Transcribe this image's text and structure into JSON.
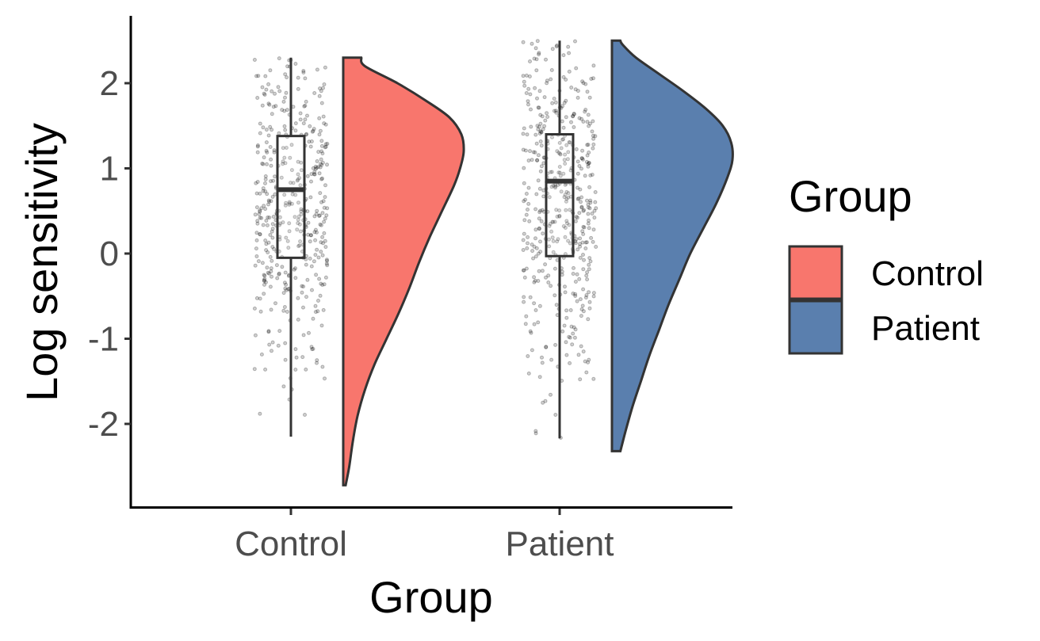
{
  "chart_data": {
    "type": "raincloud",
    "xlabel": "Group",
    "ylabel": "Log sensitivity",
    "categories": [
      "Control",
      "Patient"
    ],
    "ylim": [
      -2.95,
      2.78
    ],
    "yticks": [
      -2,
      -1,
      0,
      1,
      2
    ],
    "legend": {
      "title": "Group",
      "position": "right",
      "entries": [
        {
          "label": "Control",
          "color": "#F8766D"
        },
        {
          "label": "Patient",
          "color": "#5A7FAE"
        }
      ]
    },
    "groups": [
      {
        "name": "Control",
        "color": "#F8766D",
        "box": {
          "whisker_low": -2.15,
          "q1": -0.05,
          "median": 0.75,
          "q3": 1.38,
          "whisker_high": 2.3
        },
        "density": {
          "y": [
            -2.72,
            -2.5,
            -2.2,
            -1.9,
            -1.6,
            -1.3,
            -1.0,
            -0.7,
            -0.4,
            -0.1,
            0.2,
            0.5,
            0.8,
            1.0,
            1.2,
            1.4,
            1.6,
            1.8,
            2.0,
            2.2,
            2.3
          ],
          "width": [
            0.02,
            0.05,
            0.08,
            0.12,
            0.18,
            0.26,
            0.36,
            0.46,
            0.55,
            0.63,
            0.72,
            0.82,
            0.92,
            0.97,
            1.0,
            0.98,
            0.88,
            0.68,
            0.45,
            0.18,
            0.15
          ]
        },
        "points_n": 430,
        "points_mean": 0.55,
        "points_sd": 0.95
      },
      {
        "name": "Patient",
        "color": "#5A7FAE",
        "box": {
          "whisker_low": -2.17,
          "q1": -0.03,
          "median": 0.85,
          "q3": 1.4,
          "whisker_high": 2.5
        },
        "density": {
          "y": [
            -2.32,
            -2.1,
            -1.8,
            -1.5,
            -1.2,
            -0.9,
            -0.6,
            -0.3,
            0.0,
            0.3,
            0.6,
            0.9,
            1.1,
            1.3,
            1.5,
            1.7,
            1.9,
            2.1,
            2.3,
            2.45,
            2.5
          ],
          "width": [
            0.07,
            0.11,
            0.17,
            0.24,
            0.31,
            0.39,
            0.47,
            0.56,
            0.65,
            0.76,
            0.87,
            0.96,
            1.0,
            0.99,
            0.92,
            0.78,
            0.6,
            0.4,
            0.2,
            0.09,
            0.07
          ]
        },
        "points_n": 470,
        "points_mean": 0.6,
        "points_sd": 1.0
      }
    ]
  }
}
